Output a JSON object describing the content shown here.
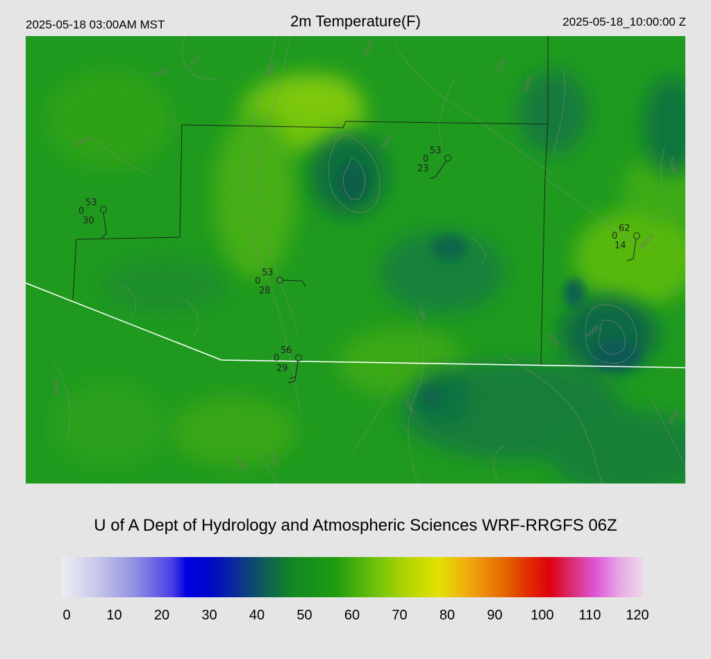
{
  "header": {
    "local_time": "2025-05-18 03:00AM MST",
    "title": "2m Temperature(F)",
    "utc_time": "2025-05-18_10:00:00 Z"
  },
  "credit": "U of A Dept of Hydrology and Atmospheric Sciences WRF-RRGFS 06Z",
  "colorbar": {
    "ticks": [
      "0",
      "10",
      "20",
      "30",
      "40",
      "50",
      "60",
      "70",
      "80",
      "90",
      "100",
      "110",
      "120"
    ]
  },
  "stations": [
    {
      "temp": "53",
      "code": "0",
      "dew": "30"
    },
    {
      "temp": "53",
      "code": "0",
      "dew": "23"
    },
    {
      "temp": "53",
      "code": "0",
      "dew": "28"
    },
    {
      "temp": "56",
      "code": "0",
      "dew": "29"
    },
    {
      "temp": "62",
      "code": "0",
      "dew": "14"
    }
  ],
  "contour_labels": [
    "3000",
    "3500",
    "4000",
    "4500",
    "5000",
    "5500",
    "6000",
    "6500",
    "5500",
    "4500",
    "5000",
    "4000",
    "5000",
    "5500",
    "6500",
    "4500",
    "4000",
    "3500"
  ]
}
